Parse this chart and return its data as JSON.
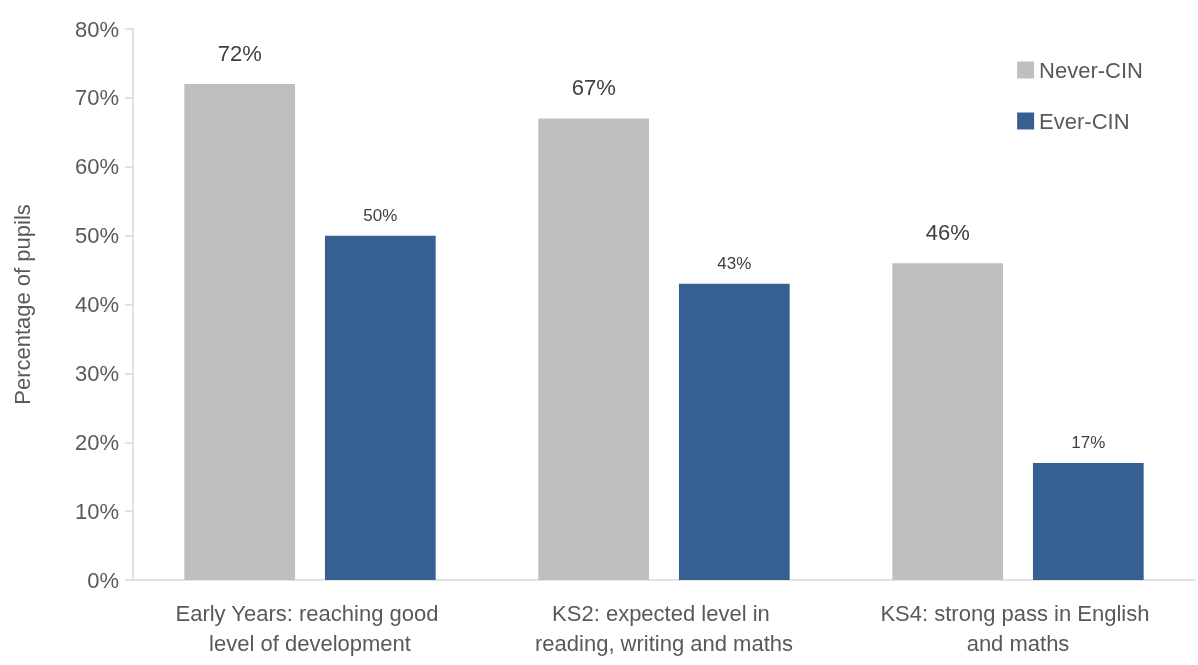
{
  "chart_data": {
    "type": "bar",
    "ylabel": "Percentage of pupils",
    "categories": [
      "Early Years: reaching good level of development",
      "KS2: expected level in reading, writing and maths",
      "KS4: strong pass in English and maths"
    ],
    "series": [
      {
        "name": "Never-CIN",
        "color": "#bfbfbf",
        "values": [
          72,
          67,
          46
        ],
        "value_labels": [
          "72%",
          "67%",
          "46%"
        ]
      },
      {
        "name": "Ever-CIN",
        "color": "#376092",
        "values": [
          50,
          43,
          17
        ],
        "value_labels": [
          "50%",
          "43%",
          "17%"
        ]
      }
    ],
    "ylim": [
      0,
      80
    ],
    "yticks": [
      {
        "value": 0,
        "label": "0%"
      },
      {
        "value": 10,
        "label": "10%"
      },
      {
        "value": 20,
        "label": "20%"
      },
      {
        "value": 30,
        "label": "30%"
      },
      {
        "value": 40,
        "label": "40%"
      },
      {
        "value": 50,
        "label": "50%"
      },
      {
        "value": 60,
        "label": "60%"
      },
      {
        "value": 70,
        "label": "70%"
      },
      {
        "value": 80,
        "label": "80%"
      }
    ],
    "grid": false,
    "legend": "top right"
  }
}
